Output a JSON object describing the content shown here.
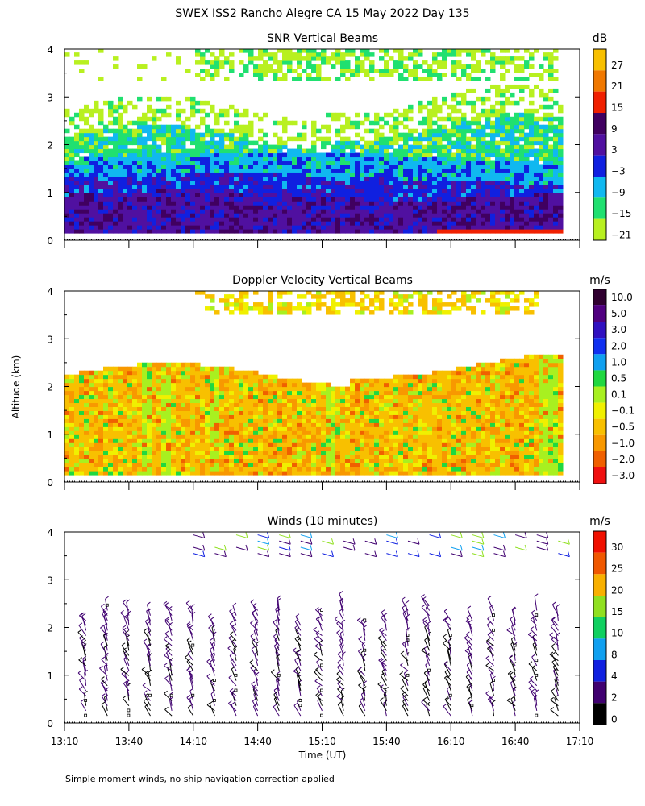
{
  "figure": {
    "title": "SWEX ISS2 Rancho Alegre CA  15 May 2022 Day 135",
    "shared_ylabel": "Altitude (km)",
    "shared_xlabel": "Time (UT)",
    "footnote": "Simple moment winds, no ship navigation correction applied"
  },
  "chart_data": [
    {
      "type": "heatmap",
      "title": "SNR Vertical Beams",
      "ylabel": "Altitude (km)",
      "xlabel": "",
      "x_ticks": [
        "13:10",
        "13:40",
        "14:10",
        "14:40",
        "15:10",
        "15:40",
        "16:10",
        "16:40",
        "17:10"
      ],
      "y_ticks": [
        "0",
        "1",
        "2",
        "3",
        "4"
      ],
      "xlim": [
        "13:10",
        "17:10"
      ],
      "ylim": [
        0,
        4
      ],
      "colorbar": {
        "unit": "dB",
        "labels": [
          "27",
          "21",
          "15",
          "9",
          "3",
          "−3",
          "−9",
          "−15",
          "−21"
        ],
        "colors": [
          "#f8c000",
          "#f07800",
          "#f02000",
          "#400060",
          "#5010a0",
          "#1020e0",
          "#10b8f0",
          "#20e070",
          "#b8f020"
        ]
      },
      "layers": [
        {
          "level": "-21 to -15 dB (sparse)",
          "alt_km": [
            2.3,
            4.0
          ]
        },
        {
          "level": "-15 to -9 dB",
          "alt_km": [
            1.6,
            2.3
          ]
        },
        {
          "level": "-9 to -3 dB",
          "alt_km": [
            1.2,
            1.7
          ]
        },
        {
          "level": "-3 to 3 dB",
          "alt_km": [
            0.9,
            1.3
          ]
        },
        {
          "level": "3 to 9 dB",
          "alt_km": [
            0.15,
            0.9
          ]
        },
        {
          "level": "15 dB",
          "alt_km": [
            0.1,
            0.2
          ],
          "time": [
            "16:00",
            "17:00"
          ]
        }
      ]
    },
    {
      "type": "heatmap",
      "title": "Doppler Velocity Vertical Beams",
      "ylabel": "Altitude (km)",
      "xlabel": "",
      "x_ticks": [
        "13:10",
        "13:40",
        "14:10",
        "14:40",
        "15:10",
        "15:40",
        "16:10",
        "16:40",
        "17:10"
      ],
      "y_ticks": [
        "0",
        "1",
        "2",
        "3",
        "4"
      ],
      "xlim": [
        "13:10",
        "17:10"
      ],
      "ylim": [
        0,
        4
      ],
      "colorbar": {
        "unit": "m/s",
        "labels": [
          "10.0",
          "5.0",
          "3.0",
          "2.0",
          "1.0",
          "0.5",
          "0.1",
          "−0.1",
          "−0.5",
          "−1.0",
          "−2.0",
          "−3.0"
        ],
        "colors": [
          "#300030",
          "#500080",
          "#3010c0",
          "#1030f0",
          "#10a0f0",
          "#20d840",
          "#a8f020",
          "#f0f000",
          "#f8c000",
          "#f89800",
          "#f06000",
          "#f01010"
        ]
      },
      "dominant": "-0.5 to -1.0 m/s (downward) from 0.1 to 2.3 km; -0.1 to 0.1 m/s patches; sparse echoes 3.5-4 km"
    },
    {
      "type": "scatter",
      "subtype": "wind-barbs",
      "title": "Winds (10 minutes)",
      "ylabel": "Altitude (km)",
      "xlabel": "Time (UT)",
      "x_ticks": [
        "13:10",
        "13:40",
        "14:10",
        "14:40",
        "15:10",
        "15:40",
        "16:10",
        "16:40",
        "17:10"
      ],
      "y_ticks": [
        "0",
        "1",
        "2",
        "3",
        "4"
      ],
      "xlim": [
        "13:10",
        "17:10"
      ],
      "ylim": [
        0,
        4
      ],
      "colorbar": {
        "unit": "m/s",
        "labels": [
          "30",
          "25",
          "20",
          "15",
          "10",
          "8",
          "4",
          "2",
          "0"
        ],
        "colors": [
          "#f01000",
          "#f05800",
          "#f8b000",
          "#90e020",
          "#10d060",
          "#10a0f0",
          "#1020e0",
          "#400070",
          "#000000"
        ]
      },
      "profile_times": [
        "13:20",
        "13:30",
        "13:40",
        "13:50",
        "14:00",
        "14:10",
        "14:20",
        "14:30",
        "14:40",
        "14:50",
        "15:00",
        "15:10",
        "15:20",
        "15:30",
        "15:40",
        "15:50",
        "16:00",
        "16:10",
        "16:20",
        "16:30",
        "16:40",
        "16:50",
        "17:00"
      ],
      "typical_speed_ms": "2-8 (dark/purple), 10-20 above 3.5 km"
    }
  ]
}
